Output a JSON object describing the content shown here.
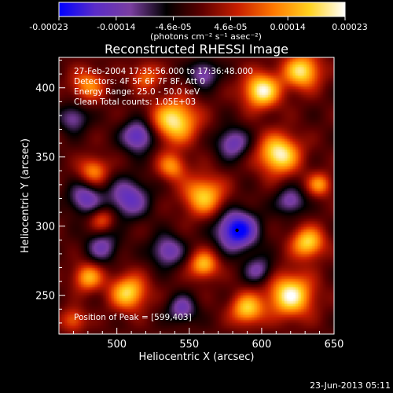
{
  "colorbar": {
    "stops": [
      "#0000ff",
      "#5a2cc8",
      "#7a3ea0",
      "#000000",
      "#5e0000",
      "#c81e00",
      "#ff7800",
      "#ffd21e",
      "#ffffff"
    ],
    "tick_labels": [
      "-0.00023",
      "-0.00014",
      "-4.6e-05",
      "4.6e-05",
      "0.00014",
      "0.00023"
    ],
    "unit_label": "(photons cm⁻² s⁻¹ asec⁻²)"
  },
  "chart_data": {
    "type": "heatmap",
    "title": "Reconstructed RHESSI Image",
    "xlabel": "Heliocentric X (arcsec)",
    "ylabel": "Heliocentric Y (arcsec)",
    "xlim": [
      460,
      650
    ],
    "ylim": [
      222,
      422
    ],
    "xticks": [
      500,
      550,
      600,
      650
    ],
    "yticks": [
      250,
      300,
      350,
      400
    ],
    "zlim": [
      -0.00023,
      0.00023
    ],
    "annotations": [
      "27-Feb-2004 17:35:56.000 to 17:36:48.000",
      "Detectors: 4F 5F 6F 7F 8F, Att 0",
      "Energy Range: 25.0 - 50.0 keV",
      "Clean     Total counts: 1.05E+03"
    ],
    "peak_label": "Position of Peak = [599,403]",
    "marker": {
      "x": 583,
      "y": 297
    },
    "colormap": "blue-purple-black-red-yellow-white",
    "sources": [
      {
        "x": 540,
        "y": 376,
        "a": 0.95,
        "s": 11
      },
      {
        "x": 600,
        "y": 398,
        "a": 1.0,
        "s": 9
      },
      {
        "x": 628,
        "y": 412,
        "a": 0.9,
        "s": 9
      },
      {
        "x": 612,
        "y": 352,
        "a": 1.0,
        "s": 10
      },
      {
        "x": 560,
        "y": 322,
        "a": 0.8,
        "s": 10
      },
      {
        "x": 538,
        "y": 343,
        "a": 0.6,
        "s": 7
      },
      {
        "x": 480,
        "y": 402,
        "a": 0.6,
        "s": 8
      },
      {
        "x": 520,
        "y": 408,
        "a": 0.5,
        "s": 7
      },
      {
        "x": 484,
        "y": 340,
        "a": 0.6,
        "s": 7
      },
      {
        "x": 490,
        "y": 305,
        "a": 0.45,
        "s": 6
      },
      {
        "x": 508,
        "y": 252,
        "a": 0.85,
        "s": 9
      },
      {
        "x": 480,
        "y": 263,
        "a": 0.7,
        "s": 7
      },
      {
        "x": 620,
        "y": 250,
        "a": 1.0,
        "s": 11
      },
      {
        "x": 632,
        "y": 288,
        "a": 0.85,
        "s": 8
      },
      {
        "x": 560,
        "y": 272,
        "a": 0.75,
        "s": 7
      },
      {
        "x": 590,
        "y": 240,
        "a": 0.8,
        "s": 8
      },
      {
        "x": 640,
        "y": 330,
        "a": 0.6,
        "s": 6
      },
      {
        "x": 470,
        "y": 232,
        "a": 0.5,
        "s": 6
      },
      {
        "x": 583,
        "y": 297,
        "a": -1.0,
        "s": 10
      },
      {
        "x": 515,
        "y": 365,
        "a": -0.75,
        "s": 8
      },
      {
        "x": 508,
        "y": 320,
        "a": -0.65,
        "s": 10
      },
      {
        "x": 478,
        "y": 320,
        "a": -0.6,
        "s": 8
      },
      {
        "x": 560,
        "y": 410,
        "a": -0.55,
        "s": 7
      },
      {
        "x": 580,
        "y": 360,
        "a": -0.6,
        "s": 8
      },
      {
        "x": 535,
        "y": 282,
        "a": -0.6,
        "s": 8
      },
      {
        "x": 470,
        "y": 378,
        "a": -0.5,
        "s": 7
      },
      {
        "x": 620,
        "y": 318,
        "a": -0.55,
        "s": 7
      },
      {
        "x": 545,
        "y": 240,
        "a": -0.55,
        "s": 7
      },
      {
        "x": 598,
        "y": 268,
        "a": -0.5,
        "s": 7
      },
      {
        "x": 490,
        "y": 285,
        "a": -0.5,
        "s": 8
      }
    ]
  },
  "footer": {
    "timestamp": "23-Jun-2013 05:11"
  }
}
